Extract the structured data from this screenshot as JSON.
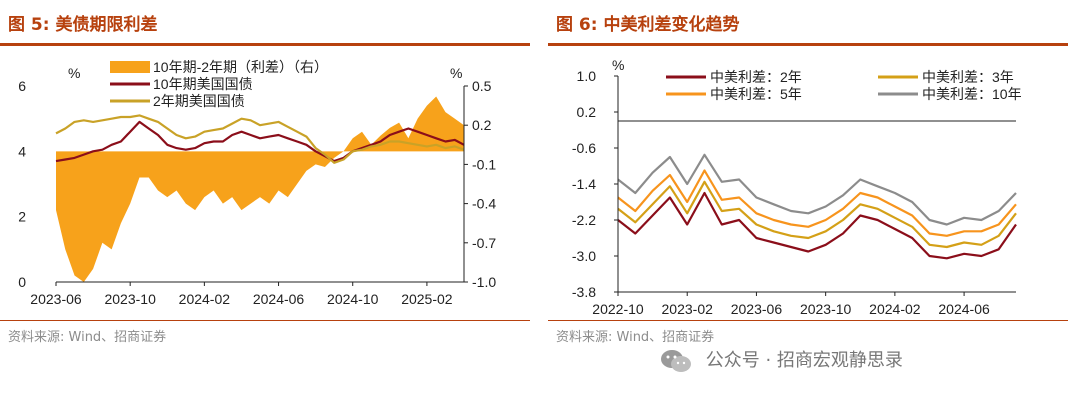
{
  "figures": [
    {
      "title": "图 5:  美债期限利差",
      "source": "资料来源: Wind、招商证券"
    },
    {
      "title": "图 6:  中美利差变化趋势",
      "source": "资料来源: Wind、招商证券"
    }
  ],
  "watermark": "公众号 · 招商宏观静思录",
  "chart_data": [
    {
      "type": "line",
      "title": "美债期限利差",
      "left_unit": "%",
      "right_unit": "%",
      "ylim_left": [
        0,
        6
      ],
      "yticks_left": [
        0,
        2,
        4,
        6
      ],
      "ylim_right": [
        -1.0,
        0.5
      ],
      "yticks_right": [
        0.5,
        0.2,
        -0.1,
        -0.4,
        -0.7,
        -1.0
      ],
      "yticks_right_labels": [
        "0.5",
        "0.2",
        "-0.1",
        "-0.4",
        "-0.7",
        "-1.0"
      ],
      "xlim": [
        0,
        22
      ],
      "xticks": [
        "2023-06",
        "2023-10",
        "2024-02",
        "2024-06",
        "2024-10",
        "2025-02"
      ],
      "xtick_pos": [
        0,
        4,
        8,
        12,
        16,
        20
      ],
      "colors": {
        "spread": "#f7a21b",
        "y10": "#8b0e1a",
        "y2": "#c9a227"
      },
      "series": [
        {
          "name": "10年期-2年期（利差）（右）",
          "axis": "right",
          "style": "area",
          "x": [
            0,
            0.5,
            1,
            1.5,
            2,
            2.5,
            3,
            3.5,
            4,
            4.5,
            5,
            5.5,
            6,
            6.5,
            7,
            7.5,
            8,
            8.5,
            9,
            9.5,
            10,
            10.5,
            11,
            11.5,
            12,
            12.5,
            13,
            13.5,
            14,
            14.5,
            15,
            15.5,
            16,
            16.5,
            17,
            17.5,
            18,
            18.5,
            19,
            19.5,
            20,
            20.5,
            21,
            21.5,
            22
          ],
          "values": [
            -0.45,
            -0.75,
            -0.95,
            -1.0,
            -0.9,
            -0.7,
            -0.75,
            -0.55,
            -0.4,
            -0.2,
            -0.2,
            -0.3,
            -0.35,
            -0.3,
            -0.4,
            -0.45,
            -0.35,
            -0.3,
            -0.4,
            -0.35,
            -0.45,
            -0.4,
            -0.35,
            -0.4,
            -0.3,
            -0.35,
            -0.25,
            -0.15,
            -0.1,
            -0.12,
            -0.05,
            0.0,
            0.1,
            0.15,
            0.05,
            0.12,
            0.18,
            0.22,
            0.1,
            0.25,
            0.35,
            0.42,
            0.3,
            0.25,
            0.2
          ]
        },
        {
          "name": "10年期美国国债",
          "axis": "left",
          "style": "line",
          "x": [
            0,
            0.5,
            1,
            1.5,
            2,
            2.5,
            3,
            3.5,
            4,
            4.5,
            5,
            5.5,
            6,
            6.5,
            7,
            7.5,
            8,
            8.5,
            9,
            9.5,
            10,
            10.5,
            11,
            11.5,
            12,
            12.5,
            13,
            13.5,
            14,
            14.5,
            15,
            15.5,
            16,
            16.5,
            17,
            17.5,
            18,
            18.5,
            19,
            19.5,
            20,
            20.5,
            21,
            21.5,
            22
          ],
          "values": [
            3.7,
            3.75,
            3.8,
            3.9,
            4.0,
            4.05,
            4.2,
            4.3,
            4.6,
            4.9,
            4.7,
            4.5,
            4.2,
            4.1,
            4.05,
            4.1,
            4.25,
            4.3,
            4.3,
            4.5,
            4.6,
            4.5,
            4.4,
            4.45,
            4.5,
            4.4,
            4.3,
            4.2,
            4.0,
            3.85,
            3.7,
            3.8,
            4.0,
            4.1,
            4.2,
            4.3,
            4.5,
            4.6,
            4.7,
            4.6,
            4.5,
            4.4,
            4.3,
            4.35,
            4.2
          ]
        },
        {
          "name": "2年期美国国债",
          "axis": "left",
          "style": "line",
          "x": [
            0,
            0.5,
            1,
            1.5,
            2,
            2.5,
            3,
            3.5,
            4,
            4.5,
            5,
            5.5,
            6,
            6.5,
            7,
            7.5,
            8,
            8.5,
            9,
            9.5,
            10,
            10.5,
            11,
            11.5,
            12,
            12.5,
            13,
            13.5,
            14,
            14.5,
            15,
            15.5,
            16,
            16.5,
            17,
            17.5,
            18,
            18.5,
            19,
            19.5,
            20,
            20.5,
            21,
            21.5,
            22
          ],
          "values": [
            4.55,
            4.7,
            4.9,
            4.95,
            4.9,
            4.95,
            5.0,
            5.05,
            5.05,
            5.1,
            5.0,
            4.9,
            4.7,
            4.5,
            4.4,
            4.45,
            4.6,
            4.65,
            4.7,
            4.85,
            5.0,
            4.95,
            4.8,
            4.85,
            4.9,
            4.75,
            4.6,
            4.45,
            4.1,
            3.9,
            3.65,
            3.75,
            4.0,
            4.05,
            4.15,
            4.2,
            4.3,
            4.3,
            4.25,
            4.2,
            4.15,
            4.2,
            4.1,
            4.15,
            4.05
          ]
        }
      ]
    },
    {
      "type": "line",
      "title": "中美利差变化趋势",
      "unit": "%",
      "ylim": [
        -3.8,
        1.0
      ],
      "yticks": [
        1.0,
        0.2,
        -0.6,
        -1.4,
        -2.2,
        -3.0,
        -3.8
      ],
      "ytick_labels": [
        "1.0",
        "0.2",
        "-0.6",
        "-1.4",
        "-2.2",
        "-3.0",
        "-3.8"
      ],
      "xlim": [
        0,
        23
      ],
      "xticks": [
        "2022-10",
        "2023-02",
        "2023-06",
        "2023-10",
        "2024-02",
        "2024-06"
      ],
      "xtick_pos": [
        0,
        4,
        8,
        12,
        16,
        20
      ],
      "colors": {
        "s2": "#8b0e1a",
        "s3": "#d4a017",
        "s5": "#f7941d",
        "s10": "#8c8c8c"
      },
      "x": [
        0,
        1,
        2,
        3,
        4,
        5,
        6,
        7,
        8,
        9,
        10,
        11,
        12,
        13,
        14,
        15,
        16,
        17,
        18,
        19,
        20,
        21,
        22,
        23
      ],
      "series": [
        {
          "name": "中美利差：2年",
          "values": [
            -2.2,
            -2.5,
            -2.1,
            -1.7,
            -2.3,
            -1.6,
            -2.3,
            -2.2,
            -2.6,
            -2.7,
            -2.8,
            -2.9,
            -2.75,
            -2.5,
            -2.1,
            -2.2,
            -2.4,
            -2.6,
            -3.0,
            -3.05,
            -2.95,
            -3.0,
            -2.85,
            -2.3
          ]
        },
        {
          "name": "中美利差：3年",
          "values": [
            -1.95,
            -2.25,
            -1.85,
            -1.45,
            -2.05,
            -1.35,
            -2.0,
            -1.95,
            -2.3,
            -2.45,
            -2.55,
            -2.6,
            -2.45,
            -2.2,
            -1.85,
            -1.95,
            -2.15,
            -2.35,
            -2.75,
            -2.8,
            -2.7,
            -2.75,
            -2.55,
            -2.05
          ]
        },
        {
          "name": "中美利差：5年",
          "values": [
            -1.7,
            -2.0,
            -1.55,
            -1.2,
            -1.8,
            -1.1,
            -1.75,
            -1.7,
            -2.05,
            -2.2,
            -2.3,
            -2.35,
            -2.2,
            -1.95,
            -1.6,
            -1.7,
            -1.9,
            -2.1,
            -2.5,
            -2.55,
            -2.45,
            -2.45,
            -2.3,
            -1.85
          ]
        },
        {
          "name": "中美利差：10年",
          "values": [
            -1.3,
            -1.6,
            -1.15,
            -0.8,
            -1.4,
            -0.75,
            -1.35,
            -1.3,
            -1.7,
            -1.85,
            -2.0,
            -2.05,
            -1.9,
            -1.65,
            -1.3,
            -1.45,
            -1.6,
            -1.8,
            -2.2,
            -2.3,
            -2.15,
            -2.2,
            -2.0,
            -1.6
          ]
        }
      ]
    }
  ]
}
